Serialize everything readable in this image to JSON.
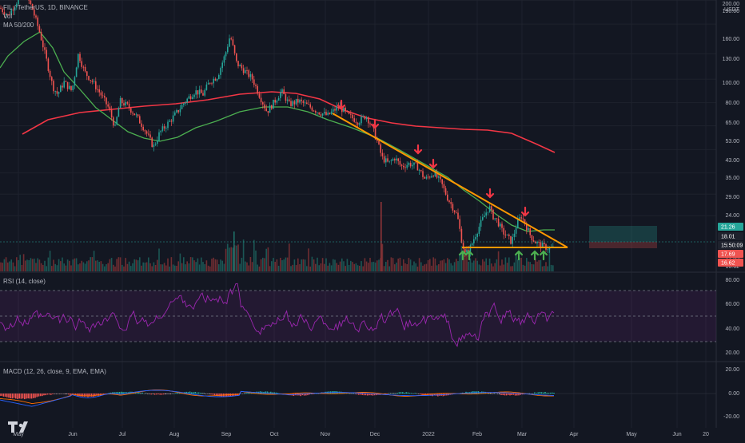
{
  "legend": {
    "symbol": "FIL / TetherUS, 1D, BINANCE",
    "vol": "Vol",
    "ma": "MA 50/200",
    "rsi": "RSI (14, close)",
    "macd": "MACD (12, 26, close, 9, EMA, EMA)"
  },
  "price_axis": {
    "currency": "USDT",
    "ticks": [
      "200.00",
      "190.00",
      "160.00",
      "130.00",
      "100.00",
      "80.00",
      "65.00",
      "53.00",
      "43.00",
      "35.00",
      "29.00",
      "24.00",
      "17.69",
      "16.62"
    ],
    "labels": [
      {
        "text": "21.26",
        "color": "#26a69a"
      },
      {
        "text": "18.01",
        "color": "#1e222d"
      },
      {
        "text": "15:50:09",
        "color": "#1e222d"
      },
      {
        "text": "17.69",
        "color": "#ef5350"
      },
      {
        "text": "16.62",
        "color": "#ef5350"
      }
    ]
  },
  "rsi_axis": {
    "ticks": [
      "80.00",
      "60.00",
      "40.00",
      "20.00"
    ]
  },
  "macd_axis": {
    "ticks": [
      "20.00",
      "0.00",
      "-20.00"
    ]
  },
  "time_axis": {
    "ticks": [
      "May",
      "Jun",
      "Jul",
      "Aug",
      "Sep",
      "Oct",
      "Nov",
      "Dec",
      "2022",
      "Feb",
      "Mar",
      "Apr",
      "May",
      "Jun",
      "20"
    ]
  },
  "colors": {
    "background": "#131722",
    "up": "#26a69a",
    "down": "#ef5350",
    "ma50": "#4caf50",
    "ma200": "#f23645",
    "trendline": "#ff9800",
    "rsi": "#9c27b0",
    "macd": "#2962ff",
    "signal": "#ff6d00"
  },
  "chart_data": [
    {
      "type": "line",
      "title": "FIL / TetherUS, 1D, BINANCE",
      "scale": "log",
      "x": [
        "May",
        "Jun",
        "Jul",
        "Aug",
        "Sep",
        "Oct",
        "Nov",
        "Dec",
        "2022",
        "Feb",
        "Mar"
      ],
      "series": [
        {
          "name": "close",
          "values": [
            165,
            95,
            70,
            52,
            115,
            62,
            60,
            45,
            30,
            25,
            19
          ]
        },
        {
          "name": "MA 50",
          "values": [
            150,
            108,
            62,
            52,
            82,
            75,
            62,
            46,
            33,
            24,
            21
          ]
        },
        {
          "name": "MA 200",
          "values": [
            60,
            70,
            74,
            80,
            85,
            95,
            86,
            70,
            60,
            52,
            46
          ]
        }
      ],
      "annotations": [
        "descending triangle trendline",
        "support at 17.69"
      ]
    },
    {
      "type": "area",
      "title": "RSI (14, close)",
      "ylim": [
        20,
        80
      ],
      "levels": [
        70,
        50,
        30
      ]
    },
    {
      "type": "bar",
      "title": "MACD (12, 26, close, 9, EMA, EMA)",
      "ylim": [
        -20,
        20
      ]
    }
  ]
}
